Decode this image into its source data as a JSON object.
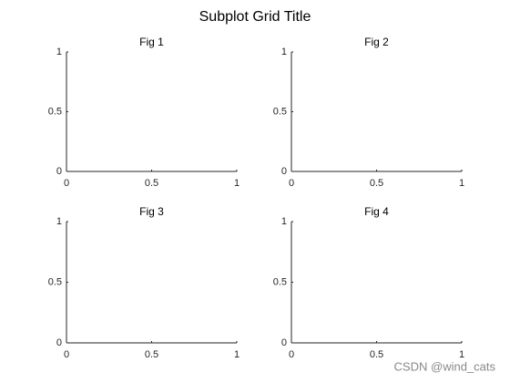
{
  "title": "Subplot Grid Title",
  "chart_data": [
    {
      "type": "line",
      "title": "Fig 1",
      "xlim": [
        0,
        1
      ],
      "ylim": [
        0,
        1
      ],
      "xticks": [
        0,
        0.5,
        1
      ],
      "yticks": [
        0,
        0.5,
        1
      ]
    },
    {
      "type": "line",
      "title": "Fig 2",
      "xlim": [
        0,
        1
      ],
      "ylim": [
        0,
        1
      ],
      "xticks": [
        0,
        0.5,
        1
      ],
      "yticks": [
        0,
        0.5,
        1
      ]
    },
    {
      "type": "line",
      "title": "Fig 3",
      "xlim": [
        0,
        1
      ],
      "ylim": [
        0,
        1
      ],
      "xticks": [
        0,
        0.5,
        1
      ],
      "yticks": [
        0,
        0.5,
        1
      ]
    },
    {
      "type": "line",
      "title": "Fig 4",
      "xlim": [
        0,
        1
      ],
      "ylim": [
        0,
        1
      ],
      "xticks": [
        0,
        0.5,
        1
      ],
      "yticks": [
        0,
        0.5,
        1
      ]
    }
  ],
  "watermark": "CSDN @wind_cats"
}
